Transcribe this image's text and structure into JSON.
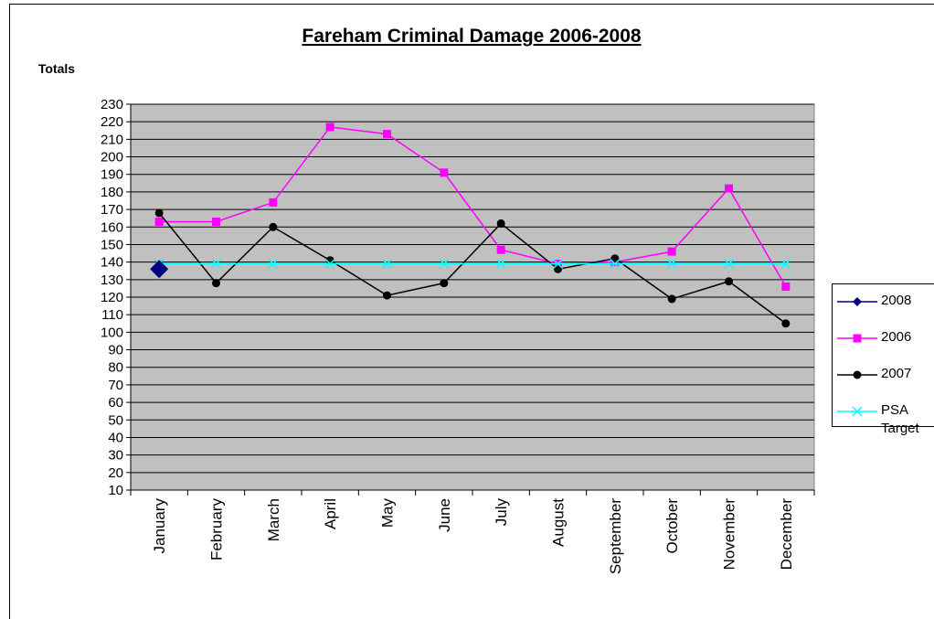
{
  "chart_data": {
    "type": "line",
    "title": "Fareham Criminal Damage 2006-2008",
    "y_label": "Totals",
    "categories": [
      "January",
      "February",
      "March",
      "April",
      "May",
      "June",
      "July",
      "August",
      "September",
      "October",
      "November",
      "December"
    ],
    "series": [
      {
        "name": "2008",
        "color": "#000080",
        "marker": "diamond",
        "values": [
          136,
          null,
          null,
          null,
          null,
          null,
          null,
          null,
          null,
          null,
          null,
          null
        ]
      },
      {
        "name": "2006",
        "color": "#ff00ff",
        "marker": "square",
        "values": [
          163,
          163,
          174,
          217,
          213,
          191,
          147,
          139,
          140,
          146,
          182,
          126
        ]
      },
      {
        "name": "2007",
        "color": "#000000",
        "marker": "circle",
        "values": [
          168,
          128,
          160,
          141,
          121,
          128,
          162,
          136,
          142,
          119,
          129,
          105
        ]
      },
      {
        "name": "PSA Target",
        "color": "#00ffff",
        "marker": "x",
        "values": [
          139,
          139,
          139,
          139,
          139,
          139,
          139,
          139,
          139,
          139,
          139,
          139
        ]
      }
    ],
    "ylim": [
      10,
      230
    ],
    "yticks": [
      10,
      20,
      30,
      40,
      50,
      60,
      70,
      80,
      90,
      100,
      110,
      120,
      130,
      140,
      150,
      160,
      170,
      180,
      190,
      200,
      210,
      220,
      230
    ],
    "grid": true,
    "plot_background": "#c0c0c0",
    "legend": "right"
  }
}
